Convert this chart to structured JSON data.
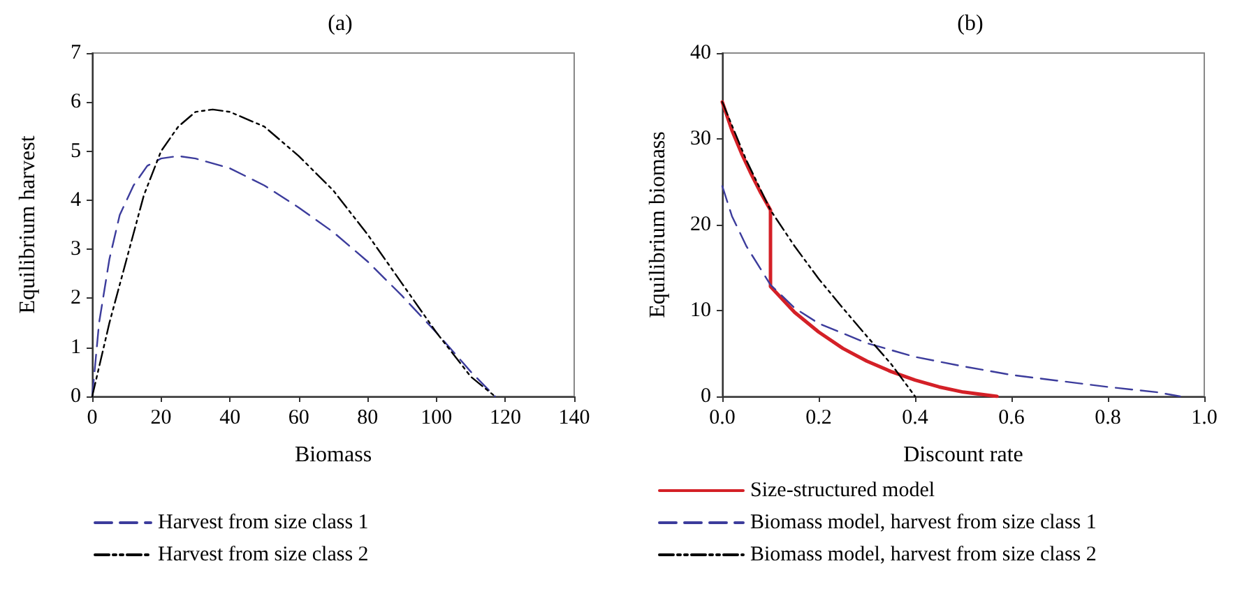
{
  "chart_data": [
    {
      "type": "line",
      "title": "(a)",
      "xlabel": "Biomass",
      "ylabel": "Equilibrium harvest",
      "xlim": [
        0,
        140
      ],
      "xticks": [
        0,
        20,
        40,
        60,
        80,
        100,
        120,
        140
      ],
      "ylim": [
        0,
        7
      ],
      "yticks": [
        0,
        1,
        2,
        3,
        4,
        5,
        6,
        7
      ],
      "grid": false,
      "legend": "bottom",
      "marker": "none",
      "series": [
        {
          "name": "Harvest from size class 1",
          "color": "#3c3c9c",
          "line_style": "dashed",
          "x": [
            0,
            2,
            5,
            8,
            12,
            16,
            20,
            25,
            30,
            40,
            50,
            60,
            70,
            80,
            90,
            100,
            110,
            117
          ],
          "values": [
            0,
            1.5,
            2.8,
            3.7,
            4.3,
            4.7,
            4.85,
            4.9,
            4.85,
            4.65,
            4.3,
            3.85,
            3.35,
            2.75,
            2.05,
            1.3,
            0.5,
            0
          ]
        },
        {
          "name": "Harvest from size class 2",
          "color": "#000000",
          "line_style": "dashed",
          "x": [
            0,
            2,
            5,
            10,
            15,
            20,
            25,
            30,
            35,
            40,
            50,
            60,
            70,
            80,
            90,
            100,
            110,
            117
          ],
          "values": [
            0,
            0.6,
            1.5,
            2.8,
            4.1,
            5.0,
            5.5,
            5.8,
            5.85,
            5.8,
            5.5,
            4.9,
            4.2,
            3.3,
            2.3,
            1.3,
            0.4,
            0
          ]
        }
      ]
    },
    {
      "type": "line",
      "title": "(b)",
      "xlabel": "Discount rate",
      "ylabel": "Equilibrium biomass",
      "xlim": [
        0,
        1
      ],
      "xticks": [
        {
          "value": 0,
          "label": "0.0"
        },
        0.2,
        0.4,
        0.6,
        0.8,
        {
          "value": 1,
          "label": "1.0"
        }
      ],
      "ylim": [
        0,
        40
      ],
      "yticks": [
        0,
        10,
        20,
        30,
        40
      ],
      "grid": false,
      "legend": "bottom",
      "marker": "none",
      "series": [
        {
          "name": "Size-structured model",
          "color": "#d42027",
          "line_style": "solid",
          "x": [
            0,
            0.02,
            0.04,
            0.06,
            0.08,
            0.1,
            0.1,
            0.15,
            0.2,
            0.25,
            0.3,
            0.35,
            0.4,
            0.45,
            0.5,
            0.57
          ],
          "values": [
            34.3,
            31,
            28.3,
            25.9,
            23.7,
            21.7,
            12.8,
            9.8,
            7.5,
            5.6,
            4.1,
            2.9,
            1.9,
            1.1,
            0.5,
            0
          ]
        },
        {
          "name": "Biomass model, harvest from size class 1",
          "color": "#3c3c9c",
          "line_style": "dashed",
          "x": [
            0,
            0.02,
            0.05,
            0.1,
            0.15,
            0.2,
            0.3,
            0.4,
            0.5,
            0.6,
            0.7,
            0.8,
            0.9,
            0.95
          ],
          "values": [
            24.5,
            21,
            17.5,
            13,
            10.3,
            8.5,
            6.2,
            4.6,
            3.5,
            2.5,
            1.8,
            1.1,
            0.5,
            0
          ]
        },
        {
          "name": "Biomass model, harvest from size class 2",
          "color": "#000000",
          "line_style": "dashed",
          "x": [
            0,
            0.05,
            0.1,
            0.15,
            0.2,
            0.25,
            0.3,
            0.35,
            0.4
          ],
          "values": [
            34.3,
            27.5,
            21.7,
            17.5,
            13.7,
            10.3,
            7,
            3.8,
            0
          ]
        }
      ]
    }
  ]
}
